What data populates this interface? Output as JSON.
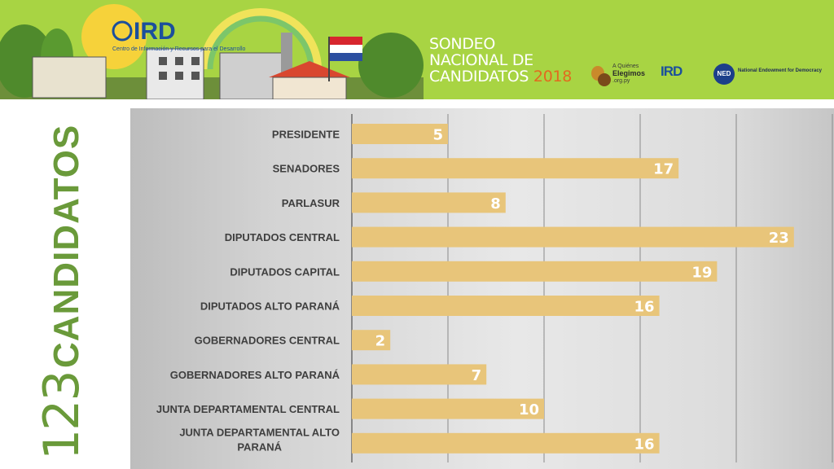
{
  "header": {
    "logo_text": "IRD",
    "logo_subtitle": "Centro de Información y Recursos para el Desarrollo",
    "title_lines": [
      "SONDEO",
      "NACIONAL DE",
      "CANDIDATOS"
    ],
    "title_year": "2018",
    "partner_logos": [
      {
        "name": "a-quienes-elegimos-logo",
        "lines": [
          "A Quiénes",
          "Elegimos",
          ".org.py"
        ]
      },
      {
        "name": "ird-logo",
        "text": "IRD"
      },
      {
        "name": "ned-logo",
        "badge": "NED",
        "text": "National Endowment for Democracy"
      }
    ]
  },
  "summary": {
    "total": "123",
    "label": "CANDIDATOS"
  },
  "colors": {
    "banner": "#a8d443",
    "bar": "#e8c57a",
    "accent_green": "#6a9a3a",
    "year_orange": "#e26a1f"
  },
  "chart_data": {
    "type": "bar",
    "orientation": "horizontal",
    "categories": [
      "PRESIDENTE",
      "SENADORES",
      "PARLASUR",
      "DIPUTADOS CENTRAL",
      "DIPUTADOS CAPITAL",
      "DIPUTADOS ALTO PARANÁ",
      "GOBERNADORES CENTRAL",
      "GOBERNADORES ALTO PARANÁ",
      "JUNTA DEPARTAMENTAL CENTRAL",
      "JUNTA DEPARTAMENTAL ALTO PARANÁ"
    ],
    "values": [
      5,
      17,
      8,
      23,
      19,
      16,
      2,
      7,
      10,
      16
    ],
    "xlim": [
      0,
      25
    ],
    "grid": true,
    "data_labels": true
  }
}
